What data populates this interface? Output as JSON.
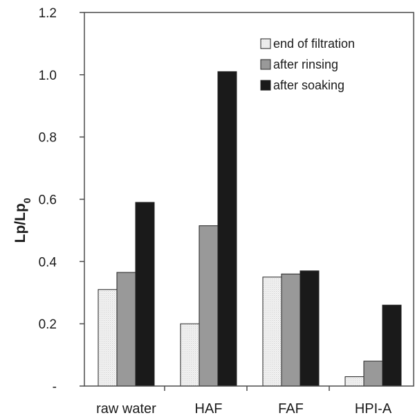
{
  "chart_data": {
    "type": "bar",
    "categories": [
      "raw water",
      "HAF",
      "FAF",
      "HPI-A"
    ],
    "series": [
      {
        "name": "end of filtration",
        "values": [
          0.31,
          0.2,
          0.35,
          0.03
        ],
        "color": "#eeeeee",
        "pattern": "dotted"
      },
      {
        "name": "after rinsing",
        "values": [
          0.365,
          0.515,
          0.36,
          0.08
        ],
        "color": "#999999",
        "pattern": "solid"
      },
      {
        "name": "after soaking",
        "values": [
          0.59,
          1.01,
          0.37,
          0.26
        ],
        "color": "#1a1a1a",
        "pattern": "solid"
      }
    ],
    "ylabel_main": "Lp/Lp",
    "ylabel_sub": "0",
    "ylim": [
      0,
      1.2
    ],
    "yticks": [
      {
        "value": 0,
        "label": "-"
      },
      {
        "value": 0.2,
        "label": "0.2"
      },
      {
        "value": 0.4,
        "label": "0.4"
      },
      {
        "value": 0.6,
        "label": "0.6"
      },
      {
        "value": 0.8,
        "label": "0.8"
      },
      {
        "value": 1.0,
        "label": "1.0"
      },
      {
        "value": 1.2,
        "label": "1.2"
      }
    ],
    "legend_position": "top-right",
    "grid": false
  }
}
